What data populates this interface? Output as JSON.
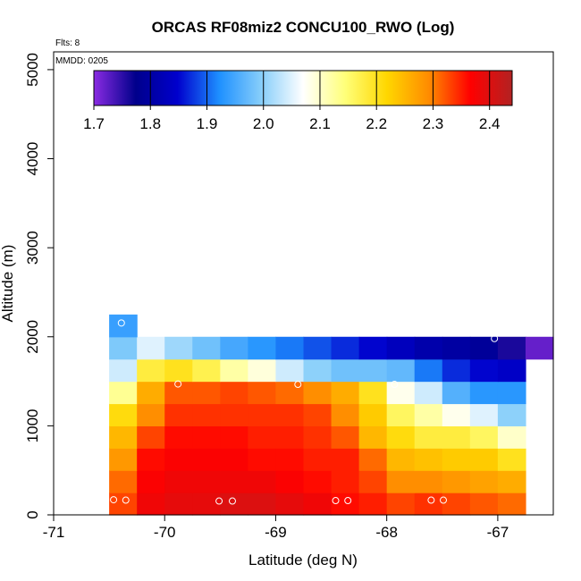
{
  "chart_data": {
    "type": "heatmap",
    "title": "ORCAS RF08miz2 CONCU100_RWO (Log)",
    "flts_label": "Flts: 8",
    "mmdd_label": "MMDD: 0205",
    "xlabel": "Latitude (deg N)",
    "ylabel": "Altitude (m)",
    "xlim": [
      -71,
      -66.5
    ],
    "ylim": [
      0,
      5200
    ],
    "x_ticks": [
      -71,
      -70,
      -69,
      -68,
      -67
    ],
    "y_ticks": [
      0,
      1000,
      2000,
      3000,
      4000,
      5000
    ],
    "colorbar": {
      "range": [
        1.7,
        2.44
      ],
      "ticks": [
        1.7,
        1.8,
        1.9,
        2.0,
        2.1,
        2.2,
        2.3,
        2.4
      ],
      "tick_labels": [
        "1.7",
        "1.8",
        "1.9",
        "2.0",
        "2.1",
        "2.2",
        "2.3",
        "2.4"
      ],
      "colors": [
        "#8a2be2",
        "#00008b",
        "#0000cd",
        "#1e90ff",
        "#87cefa",
        "#ffffff",
        "#ffff7a",
        "#ffd700",
        "#ff8c00",
        "#ff0000",
        "#b22222"
      ]
    },
    "lat_bin_start": -70.5,
    "lat_bin_width": 0.25,
    "alt_bin_start": 0,
    "alt_bin_width": 250,
    "cells": [
      {
        "row": 0,
        "values": [
          2.33,
          2.38,
          2.39,
          2.39,
          2.4,
          2.4,
          2.39,
          2.38,
          2.36,
          2.35,
          2.33,
          2.34,
          2.33,
          2.32,
          2.31
        ]
      },
      {
        "row": 1,
        "values": [
          2.31,
          2.37,
          2.38,
          2.38,
          2.38,
          2.38,
          2.37,
          2.36,
          2.35,
          2.33,
          2.29,
          2.29,
          2.28,
          2.27,
          2.26
        ]
      },
      {
        "row": 2,
        "values": [
          2.28,
          2.36,
          2.37,
          2.37,
          2.37,
          2.36,
          2.36,
          2.35,
          2.35,
          2.31,
          2.25,
          2.24,
          2.23,
          2.23,
          2.2
        ]
      },
      {
        "row": 3,
        "values": [
          2.25,
          2.33,
          2.36,
          2.36,
          2.36,
          2.35,
          2.35,
          2.34,
          2.32,
          2.25,
          2.21,
          2.18,
          2.18,
          2.16,
          2.1
        ]
      },
      {
        "row": 4,
        "values": [
          2.21,
          2.29,
          2.34,
          2.34,
          2.34,
          2.34,
          2.34,
          2.33,
          2.29,
          2.23,
          2.16,
          2.12,
          2.08,
          2.05,
          2.0
        ]
      },
      {
        "row": 5,
        "values": [
          2.13,
          2.26,
          2.32,
          2.32,
          2.33,
          2.32,
          2.31,
          2.29,
          2.26,
          2.2,
          2.08,
          2.04,
          1.96,
          1.93,
          1.93
        ]
      },
      {
        "row": 6,
        "values": [
          2.04,
          2.18,
          2.2,
          2.17,
          2.12,
          2.09,
          2.04,
          2.0,
          1.98,
          1.98,
          1.97,
          1.91,
          1.87,
          1.85,
          1.84
        ]
      },
      {
        "row": 7,
        "values": [
          1.99,
          2.05,
          2.01,
          1.98,
          1.95,
          1.93,
          1.91,
          1.89,
          1.87,
          1.85,
          1.83,
          1.81,
          1.8,
          1.79,
          1.76,
          1.72
        ]
      },
      {
        "row": 8,
        "values": [
          1.94
        ]
      }
    ],
    "flight_points": [
      {
        "lat": -70.46,
        "alt": 170
      },
      {
        "lat": -70.35,
        "alt": 165
      },
      {
        "lat": -69.51,
        "alt": 155
      },
      {
        "lat": -69.39,
        "alt": 155
      },
      {
        "lat": -68.46,
        "alt": 160
      },
      {
        "lat": -68.35,
        "alt": 160
      },
      {
        "lat": -67.6,
        "alt": 165
      },
      {
        "lat": -67.49,
        "alt": 165
      },
      {
        "lat": -69.88,
        "alt": 1470
      },
      {
        "lat": -68.8,
        "alt": 1465
      },
      {
        "lat": -67.93,
        "alt": 1465
      },
      {
        "lat": -70.39,
        "alt": 2155
      },
      {
        "lat": -67.03,
        "alt": 1980
      }
    ]
  }
}
